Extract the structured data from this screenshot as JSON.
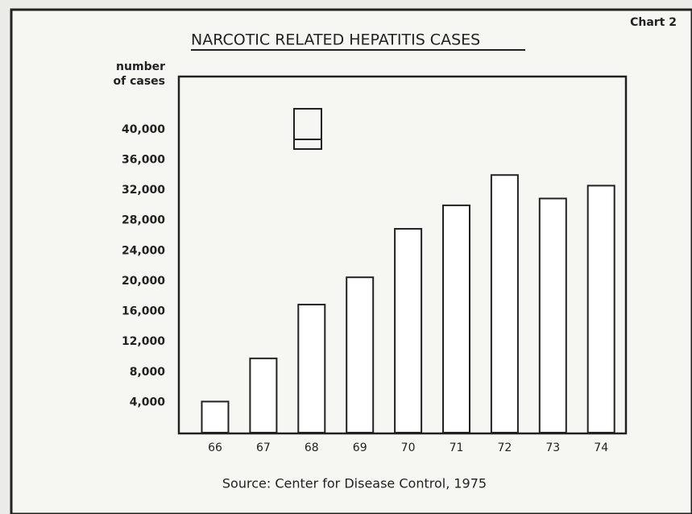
{
  "chart_data": {
    "type": "bar",
    "title": "NARCOTIC RELATED HEPATITIS CASES",
    "chart_label": "Chart 2",
    "ylabel": [
      "number",
      "of cases"
    ],
    "source": "Source:   Center for Disease Control, 1975",
    "categories": [
      "66",
      "67",
      "68",
      "69",
      "70",
      "71",
      "72",
      "73",
      "74"
    ],
    "values": [
      4100,
      9800,
      16900,
      20500,
      26900,
      30000,
      34000,
      30900,
      32600
    ],
    "color": "#ffffff",
    "ylim": [
      0,
      47000
    ],
    "yticks": [
      {
        "value": 4000,
        "label": "4,000"
      },
      {
        "value": 8000,
        "label": "8,000"
      },
      {
        "value": 12000,
        "label": "12,000"
      },
      {
        "value": 16000,
        "label": "16,000"
      },
      {
        "value": 20000,
        "label": "20,000"
      },
      {
        "value": 24000,
        "label": "24,000"
      },
      {
        "value": 28000,
        "label": "28,000"
      },
      {
        "value": 32000,
        "label": "32,000"
      },
      {
        "value": 36000,
        "label": "36,000"
      },
      {
        "value": 40000,
        "label": "40,000"
      }
    ],
    "grid": false
  }
}
